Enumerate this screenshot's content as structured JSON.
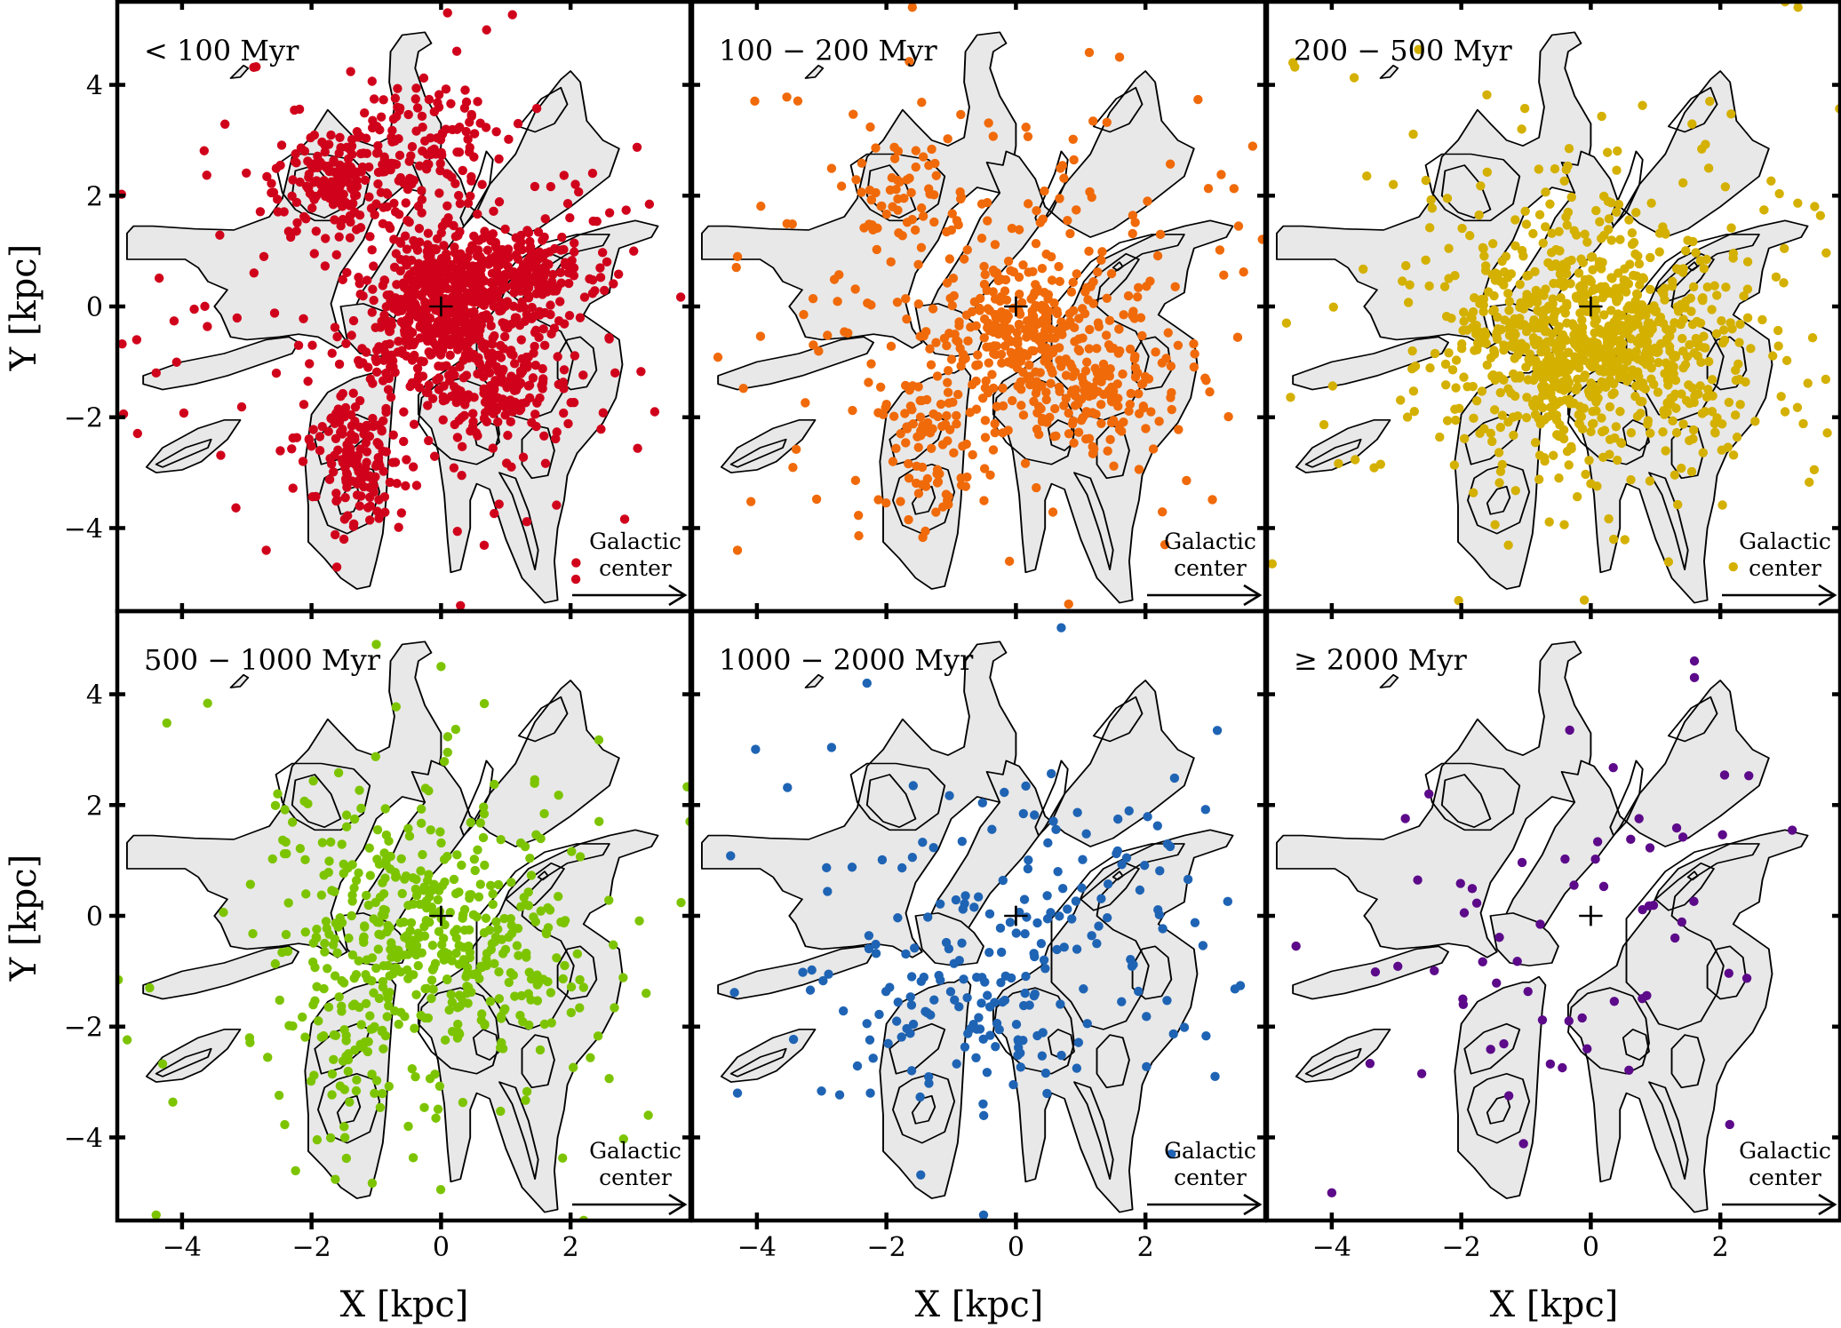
{
  "figure": {
    "xlabel": "X [kpc]",
    "ylabel": "Y [kpc]",
    "annotation": "Galactic center",
    "annotation_line1": "Galactic",
    "annotation_line2": "center",
    "sun_marker": "+",
    "contour_fill_color": "#e8e8e8",
    "contour_line_color": "#000000"
  },
  "chart_data": {
    "type": "scatter",
    "title": "",
    "xlabel": "X [kpc]",
    "ylabel": "Y [kpc]",
    "xlim": [
      -5.0,
      3.85
    ],
    "ylim": [
      -5.5,
      5.5
    ],
    "xticks": [
      -4,
      -2,
      0,
      2
    ],
    "yticks": [
      -4,
      -2,
      0,
      2,
      4
    ],
    "xtick_labels": [
      "−4",
      "−2",
      "0",
      "2"
    ],
    "ytick_labels": [
      "−4",
      "−2",
      "0",
      "2",
      "4"
    ],
    "grid": false,
    "legend": null,
    "layout": {
      "rows": 2,
      "cols": 3,
      "sharex": true,
      "sharey": true
    },
    "background_contours": "grey-filled density contours of the stellar/gas distribution, identical in every panel, with a '+' marking the origin (0,0)",
    "annotations": [
      {
        "text": "Galactic center",
        "position": "lower right of each panel",
        "arrow": "pointing +X"
      }
    ],
    "panels": [
      {
        "label": "< 100 Myr",
        "color": "#d0021b",
        "approx_count": 1500,
        "distribution": "very dense concentration around (0,0); dense clusters near (-1.6,2.3), (-1.4,-2.6), (1.2,0.7), (0.8,-1.4); scattered points out to |X|,|Y| ~ 5",
        "centroid": [
          0.0,
          0.0
        ],
        "notable_points": [
          [
            0.1,
            5.3
          ],
          [
            -4.7,
            -0.6
          ],
          [
            -4.4,
            -1.2
          ],
          [
            -2.7,
            -4.4
          ],
          [
            3.3,
            -1.9
          ],
          [
            0.3,
            -5.4
          ],
          [
            -1.5,
            -4.2
          ]
        ]
      },
      {
        "label": "100 − 200 Myr",
        "color": "#f06a0a",
        "approx_count": 700,
        "distribution": "concentrated around (0,-0.4) extending along the bar toward (1.2,-1.5) and (-1.3,-2.5); scattered arm points",
        "centroid": [
          0.0,
          -0.4
        ],
        "notable_points": [
          [
            -1.6,
            5.4
          ],
          [
            -4.3,
            0.9
          ],
          [
            -4.3,
            -4.4
          ],
          [
            2.3,
            -4.3
          ],
          [
            -0.1,
            -4.6
          ],
          [
            1.6,
            4.5
          ]
        ]
      },
      {
        "label": "200 − 500 Myr",
        "color": "#d4b000",
        "approx_count": 1000,
        "distribution": "broad smooth distribution centred near (-0.4,-0.6), elongated NW-SE, radius ~ 2.5 kpc",
        "centroid": [
          -0.4,
          -0.6
        ],
        "notable_points": [
          [
            -4.6,
            4.4
          ],
          [
            3.0,
            5.5
          ],
          [
            3.2,
            5.4
          ],
          [
            -4.7,
            -0.3
          ],
          [
            3.0,
            -1.9
          ],
          [
            2.2,
            -4.7
          ],
          [
            -0.1,
            -5.3
          ]
        ]
      },
      {
        "label": "500 − 1000 Myr",
        "color": "#7dc400",
        "approx_count": 550,
        "distribution": "diffuse, centred near (0,-0.5) with NE-SW elongation; fewer points near origin",
        "centroid": [
          0.0,
          -0.5
        ],
        "notable_points": [
          [
            -4.4,
            -5.4
          ],
          [
            3.2,
            -3.6
          ],
          [
            -4.5,
            -1.3
          ],
          [
            0.0,
            4.5
          ],
          [
            -1.0,
            4.9
          ]
        ]
      },
      {
        "label": "1000 − 2000 Myr",
        "color": "#1f64b4",
        "approx_count": 230,
        "distribution": "sparse, broadly spread; mostly in lower half (Y < 0) between X = -3 and 2",
        "centroid": [
          -0.5,
          -1.0
        ],
        "notable_points": [
          [
            0.7,
            5.2
          ],
          [
            -2.3,
            4.2
          ],
          [
            -0.5,
            -5.4
          ],
          [
            -4.3,
            -3.2
          ],
          [
            2.4,
            -4.3
          ]
        ]
      },
      {
        "label": "≥ 2000 Myr",
        "color": "#5c0a8a",
        "approx_count": 60,
        "distribution": "very sparse, mostly at X < 0 and Y < 0; a few along the NE arm",
        "centroid": [
          -1.0,
          -1.5
        ],
        "notable_points": [
          [
            1.6,
            4.6
          ],
          [
            1.6,
            4.3
          ],
          [
            -4.0,
            -5.0
          ],
          [
            -2.5,
            2.2
          ],
          [
            1.3,
            -0.4
          ]
        ]
      }
    ]
  },
  "panels": [
    {
      "title": "< 100 Myr"
    },
    {
      "title": "100 − 200 Myr"
    },
    {
      "title": "200 − 500 Myr"
    },
    {
      "title": "500 − 1000 Myr"
    },
    {
      "title": "1000 − 2000 Myr"
    },
    {
      "title": "≥ 2000 Myr"
    }
  ]
}
